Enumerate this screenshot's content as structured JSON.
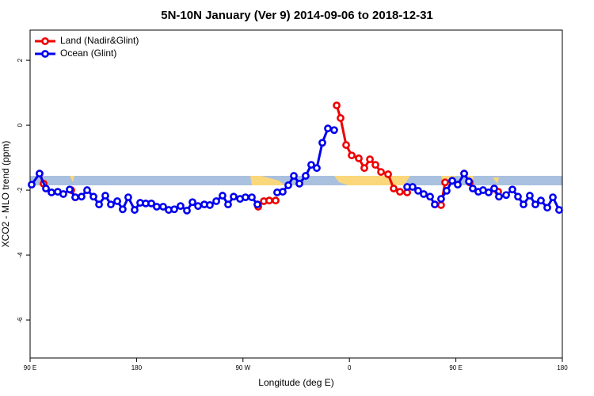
{
  "chart_data": {
    "type": "line",
    "title": "5N-10N January (Ver 9)   2014-09-06 to 2018-12-31",
    "x_label": "Longitude (deg E)",
    "y_label": "XCO2 - MLO trend (ppm)",
    "xlim": [
      90,
      540
    ],
    "ylim": [
      -7.17,
      2.93
    ],
    "xticks": [
      {
        "value": 90,
        "label": "90 E"
      },
      {
        "value": 180,
        "label": "180"
      },
      {
        "value": 270,
        "label": "90 W"
      },
      {
        "value": 360,
        "label": "0"
      },
      {
        "value": 450,
        "label": "90 E"
      },
      {
        "value": 540,
        "label": "180"
      }
    ],
    "yticks": [
      -6,
      -4,
      -2,
      0,
      2
    ],
    "legend": "top-left",
    "series": [
      {
        "name": "Land (Nadir&Glint)",
        "color": "#ee0000",
        "x": [
          98.0,
          101.4,
          null,
          124.8,
          128.2,
          null,
          282.2,
          282.9,
          287.6,
          292.2,
          297.6,
          null,
          349.2,
          352.5,
          357.2,
          361.9,
          367.9,
          372.6,
          377.3,
          382.0,
          386.7,
          392.7,
          397.4,
          402.7,
          408.8,
          null,
          432.2,
          437.5,
          440.9,
          null,
          457.0,
          461.7,
          null,
          482.4,
          485.8
        ],
        "values": [
          -1.49,
          -1.8,
          null,
          -2.0,
          -2.22,
          null,
          -2.44,
          -2.51,
          -2.34,
          -2.32,
          -2.32,
          null,
          0.61,
          0.22,
          -0.61,
          -0.93,
          -1.02,
          -1.32,
          -1.05,
          -1.22,
          -1.44,
          -1.51,
          -1.95,
          -2.05,
          -2.07,
          null,
          -2.44,
          -2.46,
          -1.76,
          null,
          -1.49,
          -1.76,
          null,
          -1.95,
          -2.05
        ]
      },
      {
        "name": "Ocean (Glint)",
        "color": "#0000ee",
        "x": [
          91.3,
          98.0,
          103.4,
          108.1,
          113.4,
          118.1,
          123.5,
          128.2,
          133.5,
          138.2,
          143.6,
          148.3,
          153.6,
          158.3,
          163.7,
          168.3,
          173.0,
          178.4,
          183.1,
          187.8,
          192.5,
          197.1,
          202.5,
          207.2,
          211.9,
          217.2,
          222.6,
          227.3,
          232.0,
          237.3,
          242.0,
          247.4,
          252.7,
          257.4,
          262.1,
          267.5,
          272.1,
          277.5,
          282.2,
          null,
          298.9,
          303.6,
          308.3,
          313.0,
          317.7,
          323.0,
          327.7,
          332.4,
          337.1,
          341.8,
          347.1,
          null,
          408.8,
          413.4,
          418.1,
          422.8,
          428.2,
          432.2,
          null,
          437.5,
          442.2,
          446.9,
          451.6,
          457.0,
          461.0,
          464.3,
          469.0,
          473.0,
          477.7,
          482.4,
          486.4,
          492.5,
          497.8,
          502.5,
          507.2,
          512.5,
          517.2,
          521.9,
          527.3,
          532.0,
          537.3
        ],
        "values": [
          -1.83,
          -1.49,
          -1.95,
          -2.07,
          -2.05,
          -2.12,
          -1.98,
          -2.22,
          -2.2,
          -2.0,
          -2.2,
          -2.44,
          -2.17,
          -2.44,
          -2.34,
          -2.59,
          -2.22,
          -2.61,
          -2.39,
          -2.41,
          -2.41,
          -2.51,
          -2.51,
          -2.61,
          -2.59,
          -2.49,
          -2.63,
          -2.37,
          -2.49,
          -2.44,
          -2.46,
          -2.34,
          -2.17,
          -2.44,
          -2.2,
          -2.27,
          -2.22,
          -2.22,
          -2.44,
          null,
          -2.07,
          -2.05,
          -1.85,
          -1.56,
          -1.8,
          -1.56,
          -1.22,
          -1.32,
          -0.54,
          -0.1,
          -0.15,
          null,
          -1.9,
          -1.9,
          -2.02,
          -2.12,
          -2.2,
          -2.44,
          null,
          -2.27,
          -2.02,
          -1.71,
          -1.83,
          -1.49,
          -1.73,
          -1.95,
          -2.05,
          -2.0,
          -2.07,
          -1.95,
          -2.2,
          -2.15,
          -1.98,
          -2.2,
          -2.44,
          -2.17,
          -2.44,
          -2.32,
          -2.54,
          -2.22,
          -2.61
        ]
      }
    ]
  }
}
